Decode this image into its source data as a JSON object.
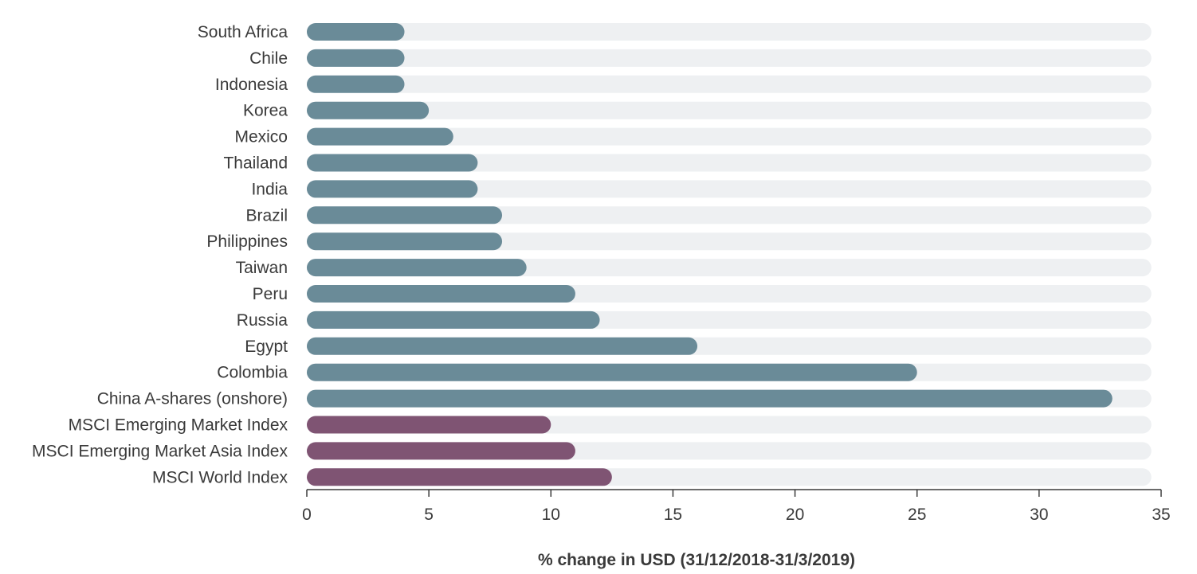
{
  "chart_data": {
    "type": "bar",
    "orientation": "horizontal",
    "categories": [
      "South Africa",
      "Chile",
      "Indonesia",
      "Korea",
      "Mexico",
      "Thailand",
      "India",
      "Brazil",
      "Philippines",
      "Taiwan",
      "Peru",
      "Russia",
      "Egypt",
      "Colombia",
      "China A-shares (onshore)",
      "MSCI Emerging Market Index",
      "MSCI Emerging Market Asia Index",
      "MSCI World Index"
    ],
    "values": [
      4,
      4,
      4,
      5,
      6,
      7,
      7,
      8,
      8,
      9,
      11,
      12,
      16,
      25,
      33,
      10,
      11,
      12.5
    ],
    "groups": [
      "country",
      "country",
      "country",
      "country",
      "country",
      "country",
      "country",
      "country",
      "country",
      "country",
      "country",
      "country",
      "country",
      "country",
      "country",
      "index",
      "index",
      "index"
    ],
    "title": "",
    "xlabel": "% change in USD (31/12/2018-31/3/2019)",
    "ylabel": "",
    "xlim": [
      0,
      35
    ],
    "xticks": [
      0,
      5,
      10,
      15,
      20,
      25,
      30,
      35
    ],
    "grid": false,
    "legend": "none"
  },
  "colors": {
    "country": "#6a8b98",
    "index": "#7f5473",
    "track": "#eef0f2",
    "axis": "#3a3a3a",
    "text": "#3a3a3a"
  }
}
